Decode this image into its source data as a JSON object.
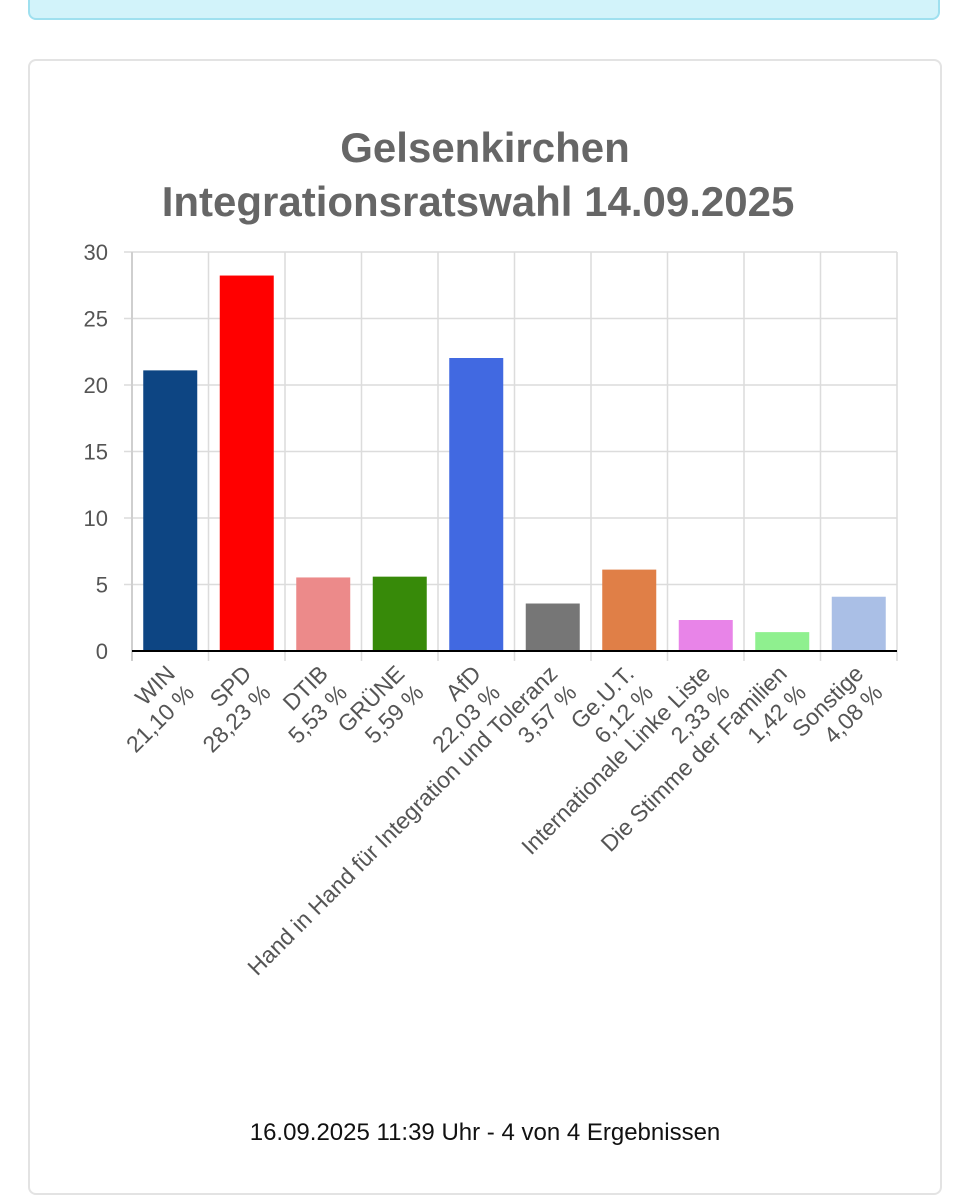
{
  "chart_data": {
    "type": "bar",
    "title_lines": [
      "Gelsenkirchen",
      "Integrationsratswahl 14.09.2025"
    ],
    "categories": [
      {
        "name": "WIN",
        "value_label": "21,10 %"
      },
      {
        "name": "SPD",
        "value_label": "28,23 %"
      },
      {
        "name": "DTIB",
        "value_label": "5,53 %"
      },
      {
        "name": "GRÜNE",
        "value_label": "5,59 %"
      },
      {
        "name": "AfD",
        "value_label": "22,03 %"
      },
      {
        "name": "Hand in Hand für Integration und Toleranz",
        "value_label": "3,57 %"
      },
      {
        "name": "Ge.U.T.",
        "value_label": "6,12 %"
      },
      {
        "name": "Internationale Linke Liste",
        "value_label": "2,33 %"
      },
      {
        "name": "Die Stimme der Familien",
        "value_label": "1,42 %"
      },
      {
        "name": "Sonstige",
        "value_label": "4,08 %"
      }
    ],
    "values": [
      21.1,
      28.23,
      5.53,
      5.59,
      22.03,
      3.57,
      6.12,
      2.33,
      1.42,
      4.08
    ],
    "colors": [
      "#0d4583",
      "#ff0000",
      "#ec8a8a",
      "#378a09",
      "#4169e1",
      "#767676",
      "#e07f47",
      "#e884e8",
      "#8ff08f",
      "#aabfe6"
    ],
    "ylim": [
      0,
      30
    ],
    "yticks": [
      0,
      5,
      10,
      15,
      20,
      25,
      30
    ],
    "grid": true,
    "legend": "none"
  },
  "footer": {
    "timestamp": "16.09.2025 11:39 Uhr - 4 von 4 Ergebnissen"
  }
}
